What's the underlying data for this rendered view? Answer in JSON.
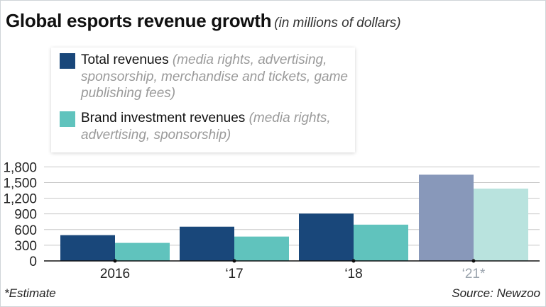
{
  "title": "Global esports revenue growth",
  "subtitle": "(in millions of dollars)",
  "footnote": "*Estimate",
  "source": "Source: Newzoo",
  "legend": [
    {
      "name": "Total revenues",
      "note": "(media rights, advertising, sponsorship, merchandise and tickets, game publishing fees)"
    },
    {
      "name": "Brand investment revenues",
      "note": "(media rights, advertising, sponsorship)"
    }
  ],
  "colors": {
    "total": "#19477a",
    "brand": "#60c3bd",
    "total_estimate": "#8898ba",
    "brand_estimate": "#b9e3de"
  },
  "chart_data": {
    "type": "bar",
    "categories": [
      "2016",
      "‘17",
      "‘18",
      "‘21*"
    ],
    "estimate": [
      false,
      false,
      false,
      true
    ],
    "series": [
      {
        "name": "Total revenues",
        "values": [
          493,
          655,
          906,
          1650
        ]
      },
      {
        "name": "Brand investment revenues",
        "values": [
          345,
          466,
          694,
          1384
        ]
      }
    ],
    "yticks": [
      0,
      300,
      600,
      900,
      1200,
      1500,
      1800
    ],
    "ylim": [
      0,
      2000
    ],
    "grid": true,
    "legend_position": "top-left"
  }
}
